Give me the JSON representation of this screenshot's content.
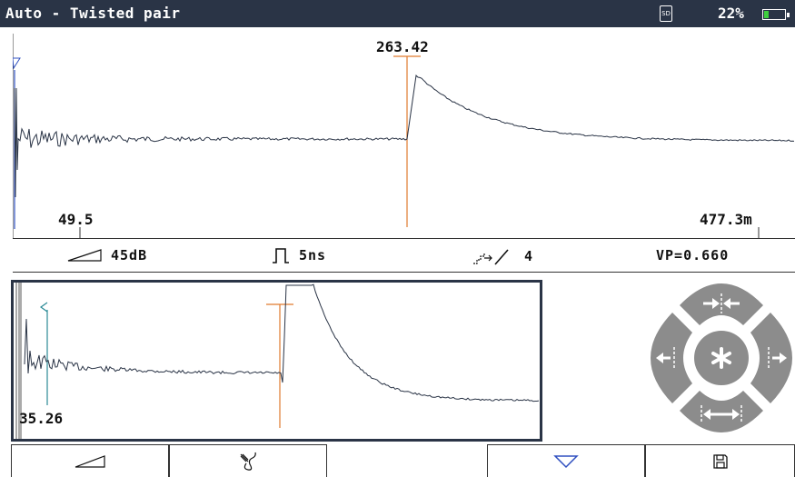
{
  "title_bar": {
    "title": "Auto - Twisted pair",
    "sd_label": "SD",
    "battery_percent_label": "22%",
    "battery_level": 0.22,
    "battery_color": "#3ecf3e"
  },
  "main_trace": {
    "cursor_label": "263.42",
    "start_label": "49.5",
    "end_label": "477.3m",
    "cursor_color": "#e07a2e",
    "trace_color": "#2a3446"
  },
  "parameters": {
    "gain": "45dB",
    "pulse_width": "5ns",
    "averaging": "4",
    "vp": "VP=0.660"
  },
  "zoom_view": {
    "marker_label": "35.26",
    "marker_color": "#2a8a96"
  },
  "dpad": {
    "center_icon": "asterisk-icon",
    "up_icon": "zoom-in-arrows-icon",
    "down_icon": "zoom-out-arrows-icon",
    "left_icon": "move-left-icon",
    "right_icon": "move-right-icon"
  },
  "softkeys": [
    {
      "icon": "gain-ramp-icon"
    },
    {
      "icon": "cable-probe-icon"
    },
    {
      "icon": ""
    },
    {
      "icon": "marker-triangle-icon"
    },
    {
      "icon": "save-disk-icon"
    }
  ]
}
